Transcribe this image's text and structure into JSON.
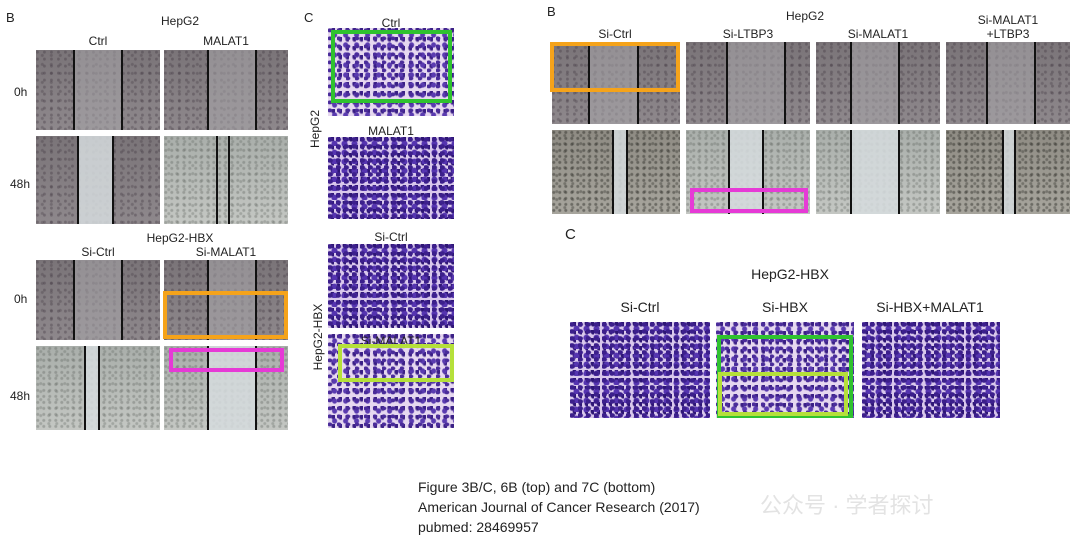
{
  "panel_3b": {
    "letter": "B",
    "group1_title": "HepG2",
    "group1_cols": [
      "Ctrl",
      "MALAT1"
    ],
    "group2_title": "HepG2-HBX",
    "group2_cols": [
      "Si-Ctrl",
      "Si-MALAT1"
    ],
    "row_labels": [
      "0h",
      "48h",
      "0h",
      "48h"
    ]
  },
  "panel_3c": {
    "letter": "C",
    "group1_label": "HepG2",
    "group2_label": "HepG2-HBX",
    "image_titles": [
      "Ctrl",
      "MALAT1",
      "Si-Ctrl",
      "Si-MALAT1"
    ]
  },
  "panel_6b": {
    "letter": "B",
    "title": "HepG2",
    "cols": [
      "Si-Ctrl",
      "Si-LTBP3",
      "Si-MALAT1",
      "Si-MALAT1\n+LTBP3"
    ]
  },
  "panel_7c": {
    "letter": "C",
    "title": "HepG2-HBX",
    "cols": [
      "Si-Ctrl",
      "Si-HBX",
      "Si-HBX+MALAT1"
    ]
  },
  "caption": {
    "line1": "Figure 3B/C, 6B (top) and 7C (bottom)",
    "line2": "American Journal of Cancer Research (2017)",
    "line3": "pubmed: 28469957"
  },
  "watermark": {
    "text1": "公众号 · 学者探讨"
  },
  "colors": {
    "highlight_orange": "#f5a31a",
    "highlight_magenta": "#e63ad6",
    "highlight_green": "#2fc22f",
    "highlight_lime": "#b5e03a",
    "stain_purple": "#4a2c9a"
  }
}
